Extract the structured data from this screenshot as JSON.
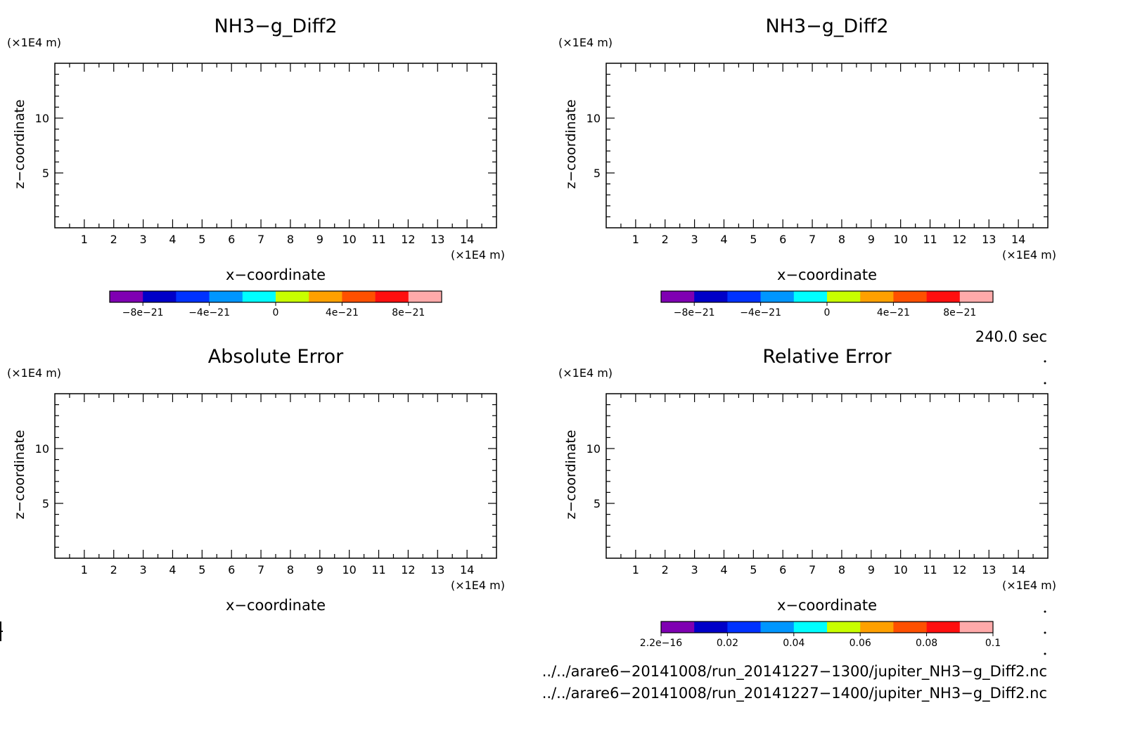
{
  "chart_data": [
    {
      "type": "heatmap",
      "title": "NH3−g_Diff2",
      "xlabel": "x−coordinate",
      "ylabel": "z−coordinate",
      "x_unit": "(×1E4 m)",
      "y_unit": "(×1E4 m)",
      "xlim": [
        0.0,
        15.0
      ],
      "ylim": [
        0.0,
        15.0
      ],
      "x_tick_labels": [
        "1",
        "2",
        "3",
        "4",
        "5",
        "6",
        "7",
        "8",
        "9",
        "10",
        "11",
        "12",
        "13",
        "14"
      ],
      "y_tick_labels": [
        "5",
        "10"
      ],
      "colorbar": {
        "colors": [
          "#7f00b2",
          "#0000c8",
          "#0032ff",
          "#0096ff",
          "#00ffff",
          "#c8ff00",
          "#ffa000",
          "#ff5000",
          "#ff0f0f",
          "#ffaaaa"
        ],
        "labels": [
          "−8e−21",
          "−4e−21",
          "0",
          "4e−21",
          "8e−21"
        ]
      }
    },
    {
      "type": "heatmap",
      "title": "NH3−g_Diff2",
      "xlabel": "x−coordinate",
      "ylabel": "z−coordinate",
      "x_unit": "(×1E4 m)",
      "y_unit": "(×1E4 m)",
      "xlim": [
        0.0,
        15.0
      ],
      "ylim": [
        0.0,
        15.0
      ],
      "x_tick_labels": [
        "1",
        "2",
        "3",
        "4",
        "5",
        "6",
        "7",
        "8",
        "9",
        "10",
        "11",
        "12",
        "13",
        "14"
      ],
      "y_tick_labels": [
        "5",
        "10"
      ],
      "colorbar": {
        "colors": [
          "#7f00b2",
          "#0000c8",
          "#0032ff",
          "#0096ff",
          "#00ffff",
          "#c8ff00",
          "#ffa000",
          "#ff5000",
          "#ff0f0f",
          "#ffaaaa"
        ],
        "labels": [
          "−8e−21",
          "−4e−21",
          "0",
          "4e−21",
          "8e−21"
        ]
      }
    },
    {
      "type": "heatmap",
      "title": "Absolute Error",
      "xlabel": "x−coordinate",
      "ylabel": "z−coordinate",
      "x_unit": "(×1E4 m)",
      "y_unit": "(×1E4 m)",
      "xlim": [
        0.0,
        15.0
      ],
      "ylim": [
        0.0,
        15.0
      ],
      "x_tick_labels": [
        "1",
        "2",
        "3",
        "4",
        "5",
        "6",
        "7",
        "8",
        "9",
        "10",
        "11",
        "12",
        "13",
        "14"
      ],
      "y_tick_labels": [
        "5",
        "10"
      ]
    },
    {
      "type": "heatmap",
      "title": "Relative Error",
      "xlabel": "x−coordinate",
      "ylabel": "z−coordinate",
      "x_unit": "(×1E4 m)",
      "y_unit": "(×1E4 m)",
      "xlim": [
        0.0,
        15.0
      ],
      "ylim": [
        0.0,
        15.0
      ],
      "x_tick_labels": [
        "1",
        "2",
        "3",
        "4",
        "5",
        "6",
        "7",
        "8",
        "9",
        "10",
        "11",
        "12",
        "13",
        "14"
      ],
      "y_tick_labels": [
        "5",
        "10"
      ],
      "colorbar": {
        "colors": [
          "#7f00b2",
          "#0000c8",
          "#0032ff",
          "#0096ff",
          "#00ffff",
          "#c8ff00",
          "#ffa000",
          "#ff5000",
          "#ff0f0f",
          "#ffaaaa"
        ],
        "labels": [
          "2.2e−16",
          "0.02",
          "0.04",
          "0.06",
          "0.08",
          "0.1"
        ]
      }
    }
  ],
  "time_label": "240.0 sec",
  "file_paths": [
    "../../arare6−20141008/run_20141227−1300/jupiter_NH3−g_Diff2.nc",
    "../../arare6−20141008/run_20141227−1400/jupiter_NH3−g_Diff2.nc"
  ]
}
